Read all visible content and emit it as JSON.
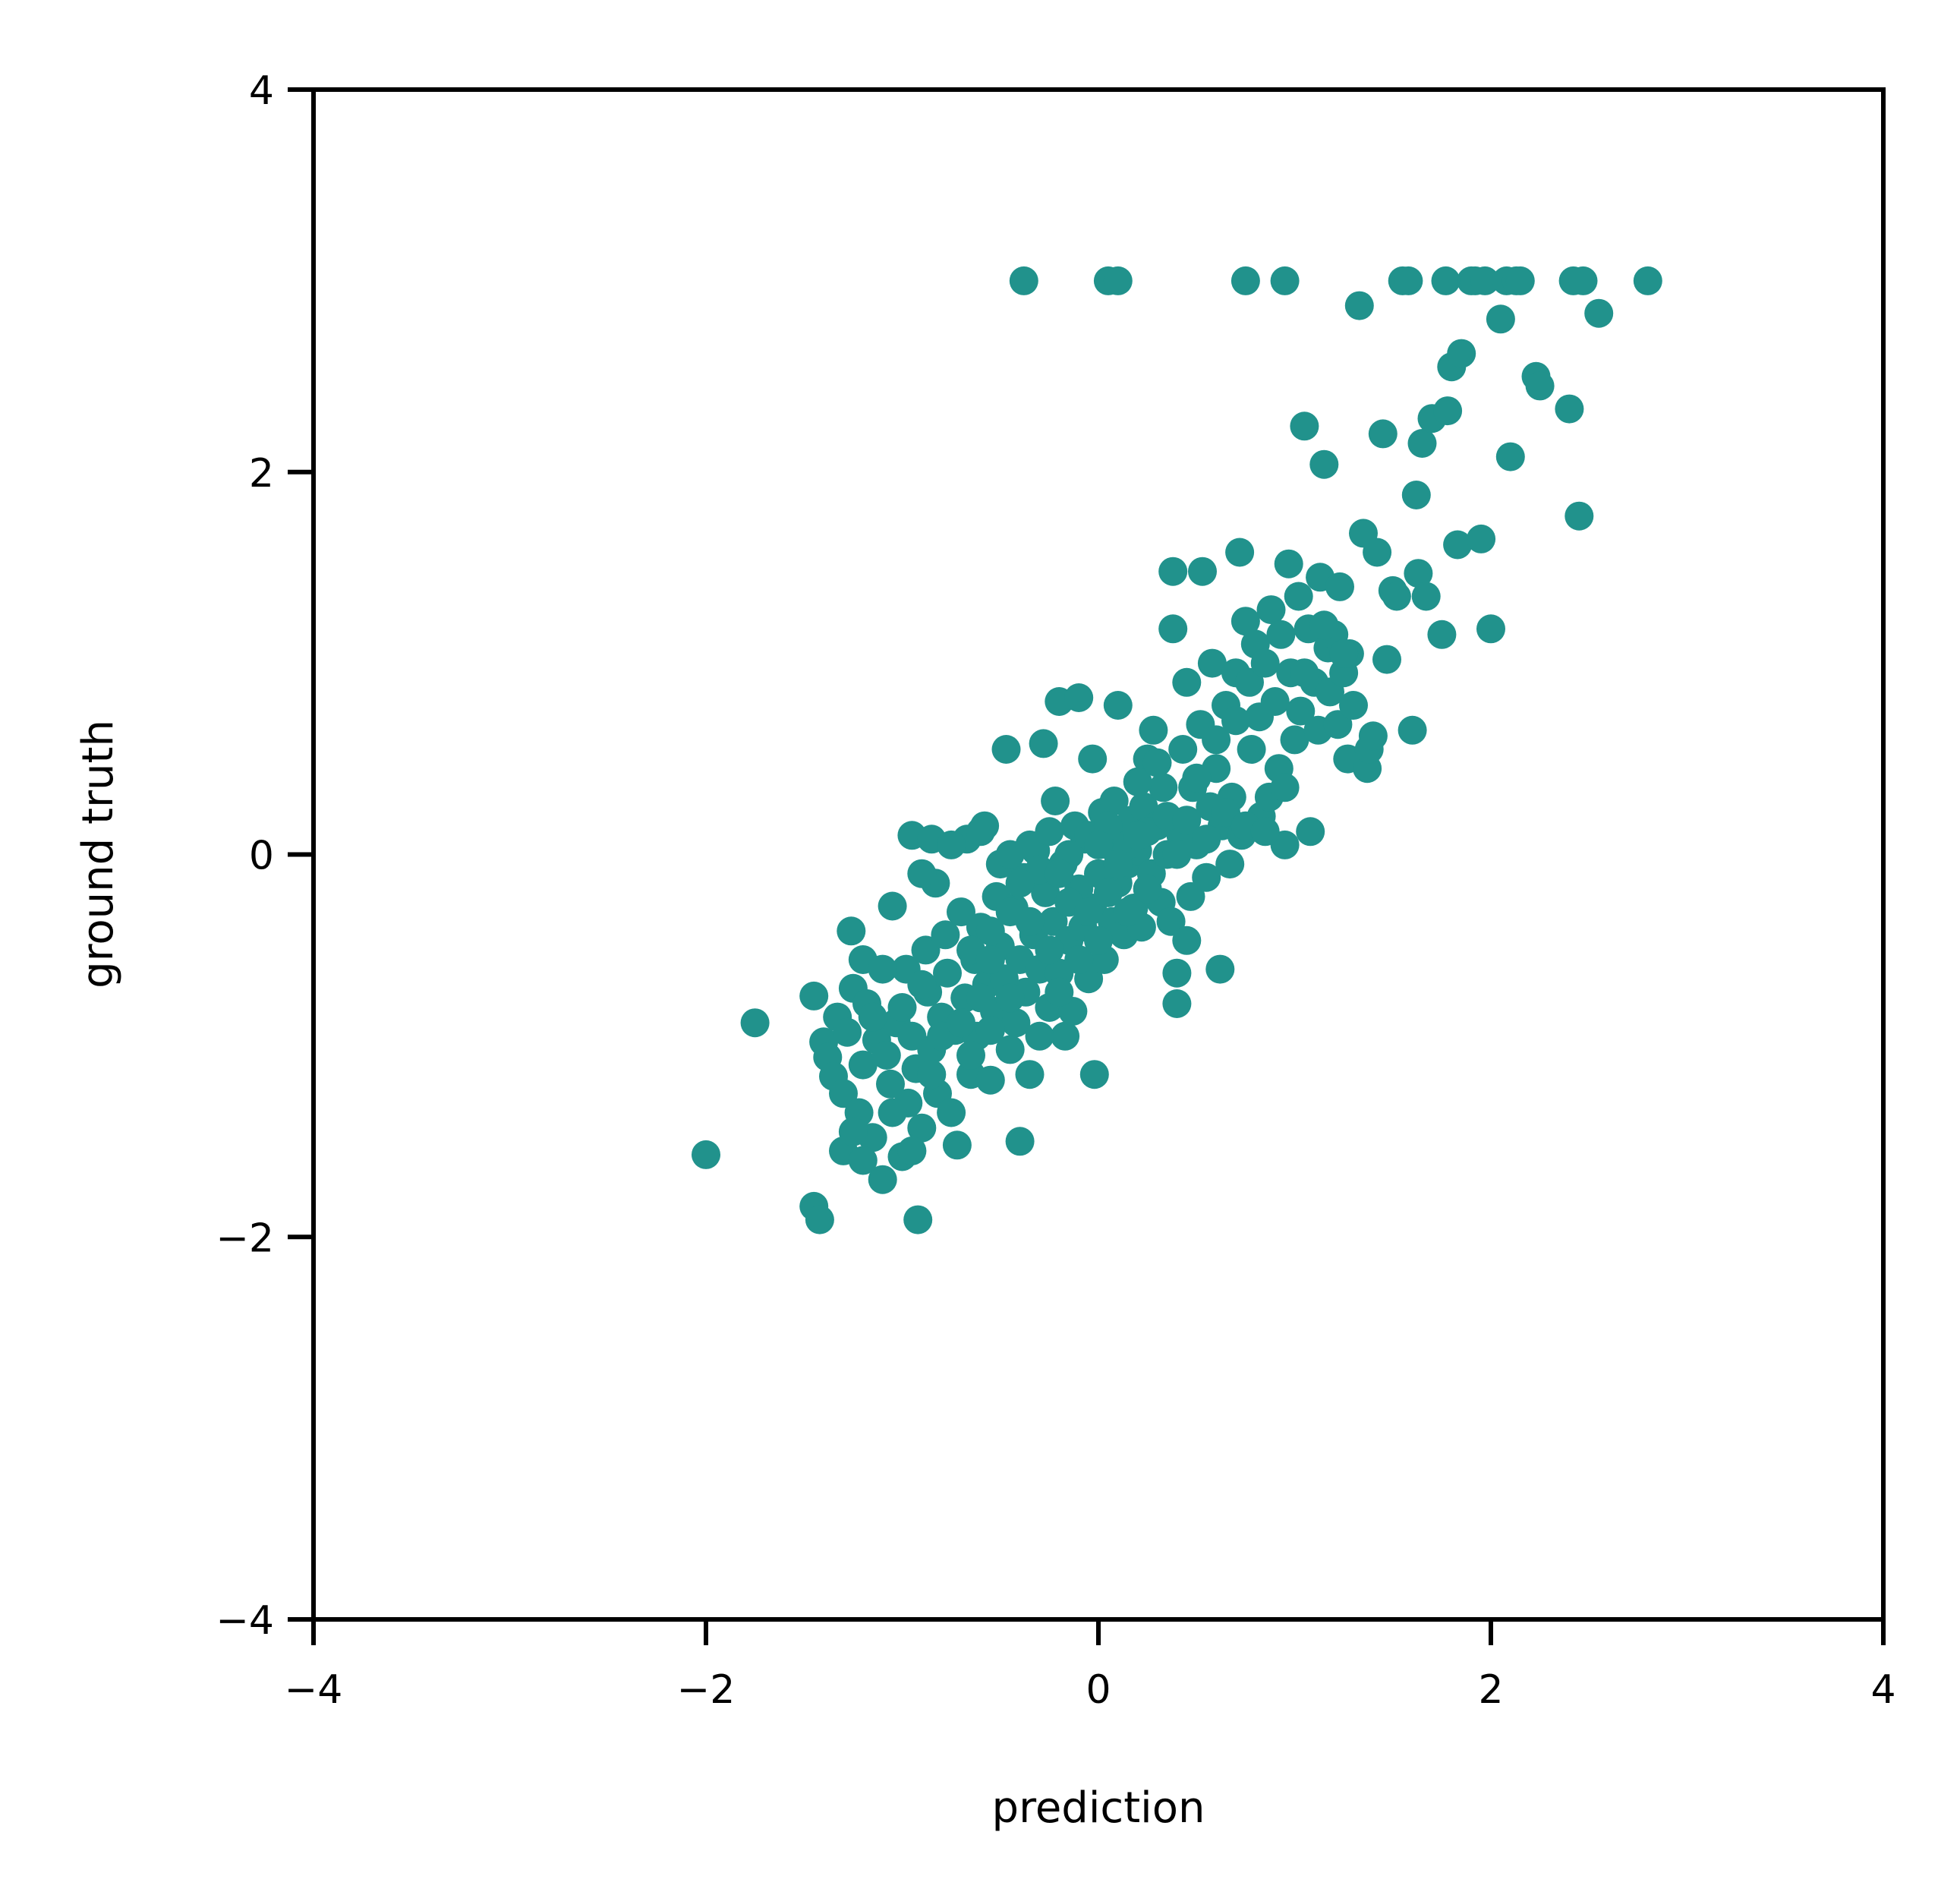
{
  "chart_data": {
    "type": "scatter",
    "title": "",
    "xlabel": "prediction",
    "ylabel": "ground truth",
    "xlim": [
      -4,
      4
    ],
    "ylim": [
      -4,
      4
    ],
    "xticks": [
      "−4",
      "−2",
      "0",
      "2",
      "4"
    ],
    "yticks": [
      "4",
      "2",
      "0",
      "−2",
      "−4"
    ],
    "xtick_values": [
      -4,
      -2,
      0,
      2,
      4
    ],
    "ytick_values": [
      4,
      2,
      0,
      -2,
      -4
    ],
    "grid": false,
    "legend": "none",
    "marker_color": "#21928c",
    "series": [
      {
        "points": [
          [
            -2.0,
            -1.57
          ],
          [
            -1.75,
            -0.88
          ],
          [
            -1.45,
            -1.84
          ],
          [
            -1.42,
            -1.91
          ],
          [
            -1.45,
            -0.74
          ],
          [
            -1.4,
            -0.98
          ],
          [
            -1.38,
            -1.06
          ],
          [
            -1.35,
            -1.16
          ],
          [
            -1.33,
            -0.85
          ],
          [
            -1.3,
            -1.25
          ],
          [
            -1.28,
            -0.93
          ],
          [
            -1.26,
            -0.4
          ],
          [
            -1.25,
            -0.7
          ],
          [
            -1.22,
            -1.35
          ],
          [
            -1.2,
            -1.1
          ],
          [
            -1.18,
            -0.78
          ],
          [
            -1.15,
            -1.48
          ],
          [
            -1.13,
            -0.97
          ],
          [
            -1.1,
            -1.7
          ],
          [
            -1.08,
            -1.05
          ],
          [
            -1.06,
            -1.2
          ],
          [
            -1.05,
            -0.27
          ],
          [
            -1.03,
            -0.88
          ],
          [
            -1.0,
            -1.58
          ],
          [
            -0.98,
            -0.6
          ],
          [
            -0.97,
            -1.3
          ],
          [
            -0.95,
            -0.95
          ],
          [
            -0.93,
            -1.12
          ],
          [
            -0.92,
            -1.91
          ],
          [
            -0.9,
            -1.43
          ],
          [
            -0.88,
            -0.5
          ],
          [
            -0.87,
            -0.72
          ],
          [
            -0.85,
            -1.02
          ],
          [
            -0.83,
            -0.15
          ],
          [
            -0.82,
            -1.25
          ],
          [
            -0.8,
            -0.85
          ],
          [
            -0.78,
            -0.42
          ],
          [
            -0.77,
            -0.62
          ],
          [
            -0.75,
            -1.35
          ],
          [
            -0.73,
            -0.92
          ],
          [
            -0.72,
            -1.52
          ],
          [
            -0.7,
            -0.3
          ],
          [
            -0.68,
            -0.75
          ],
          [
            -0.67,
            0.08
          ],
          [
            -0.65,
            -1.15
          ],
          [
            -0.63,
            -0.55
          ],
          [
            -0.62,
            -0.95
          ],
          [
            -0.6,
            -0.38
          ],
          [
            -0.58,
            0.15
          ],
          [
            -0.57,
            -0.68
          ],
          [
            -0.55,
            -1.18
          ],
          [
            -0.53,
            -0.82
          ],
          [
            -0.52,
            -0.22
          ],
          [
            -0.5,
            -0.48
          ],
          [
            -0.48,
            -0.65
          ],
          [
            -0.47,
            0.55
          ],
          [
            -0.45,
            -1.02
          ],
          [
            -0.43,
            -0.28
          ],
          [
            -0.42,
            -0.88
          ],
          [
            -0.4,
            -0.55
          ],
          [
            -0.4,
            -1.5
          ],
          [
            -0.38,
            -0.12
          ],
          [
            -0.37,
            -0.72
          ],
          [
            -0.35,
            -1.15
          ],
          [
            -0.33,
            -0.42
          ],
          [
            -0.32,
            0.02
          ],
          [
            -0.3,
            -0.6
          ],
          [
            -0.28,
            0.58
          ],
          [
            -0.27,
            -0.2
          ],
          [
            -0.25,
            -0.8
          ],
          [
            -0.23,
            -0.35
          ],
          [
            -0.22,
            0.28
          ],
          [
            -0.2,
            -0.62
          ],
          [
            -0.2,
            0.8
          ],
          [
            -0.18,
            -0.05
          ],
          [
            -0.17,
            -0.95
          ],
          [
            -0.15,
            -0.45
          ],
          [
            -0.13,
            -0.82
          ],
          [
            -0.12,
            0.15
          ],
          [
            -0.1,
            -0.18
          ],
          [
            -0.1,
            0.82
          ],
          [
            -0.08,
            -0.38
          ],
          [
            -0.07,
            0.08
          ],
          [
            -0.05,
            -0.65
          ],
          [
            -0.03,
            -0.28
          ],
          [
            -0.03,
            0.5
          ],
          [
            -0.02,
            -1.15
          ],
          [
            0.0,
            -0.1
          ],
          [
            0.02,
            0.22
          ],
          [
            0.03,
            -0.55
          ],
          [
            0.05,
            0.05
          ],
          [
            0.07,
            -0.35
          ],
          [
            0.08,
            0.28
          ],
          [
            0.1,
            -0.15
          ],
          [
            0.1,
            0.78
          ],
          [
            0.12,
            0.1
          ],
          [
            0.13,
            -0.42
          ],
          [
            0.15,
            -0.05
          ],
          [
            0.17,
            0.18
          ],
          [
            0.18,
            -0.28
          ],
          [
            0.2,
            0.02
          ],
          [
            0.22,
            -0.38
          ],
          [
            0.23,
            0.25
          ],
          [
            0.25,
            0.5
          ],
          [
            0.27,
            -0.1
          ],
          [
            0.28,
            0.65
          ],
          [
            0.3,
            0.15
          ],
          [
            0.32,
            -0.25
          ],
          [
            0.33,
            0.35
          ],
          [
            0.35,
            0.0
          ],
          [
            0.37,
            -0.35
          ],
          [
            0.38,
            1.48
          ],
          [
            0.38,
            1.18
          ],
          [
            0.4,
            -0.62
          ],
          [
            0.4,
            -0.78
          ],
          [
            0.42,
            0.1
          ],
          [
            0.43,
            0.55
          ],
          [
            0.45,
            -0.45
          ],
          [
            0.45,
            0.9
          ],
          [
            0.47,
            -0.22
          ],
          [
            0.48,
            0.35
          ],
          [
            0.5,
            0.05
          ],
          [
            0.52,
            0.68
          ],
          [
            0.53,
            1.48
          ],
          [
            0.55,
            -0.12
          ],
          [
            0.57,
            0.25
          ],
          [
            0.58,
            1.0
          ],
          [
            0.6,
            0.45
          ],
          [
            0.62,
            -0.6
          ],
          [
            0.63,
            0.15
          ],
          [
            0.65,
            0.78
          ],
          [
            0.67,
            -0.05
          ],
          [
            0.68,
            0.3
          ],
          [
            0.7,
            0.95
          ],
          [
            0.72,
            1.58
          ],
          [
            0.73,
            0.1
          ],
          [
            0.75,
            1.22
          ],
          [
            0.77,
            0.9
          ],
          [
            0.78,
            0.55
          ],
          [
            0.8,
            1.1
          ],
          [
            0.82,
            0.72
          ],
          [
            0.83,
            0.2
          ],
          [
            0.85,
            1.0
          ],
          [
            0.87,
            0.3
          ],
          [
            0.88,
            1.28
          ],
          [
            0.9,
            0.8
          ],
          [
            0.92,
            0.45
          ],
          [
            0.93,
            1.15
          ],
          [
            0.95,
            0.05
          ],
          [
            0.97,
            1.52
          ],
          [
            0.98,
            0.95
          ],
          [
            1.0,
            0.6
          ],
          [
            1.02,
            1.35
          ],
          [
            1.03,
            0.75
          ],
          [
            1.05,
            2.24
          ],
          [
            1.07,
            1.18
          ],
          [
            1.08,
            0.12
          ],
          [
            1.1,
            0.9
          ],
          [
            1.12,
            0.65
          ],
          [
            1.13,
            1.45
          ],
          [
            1.15,
            2.04
          ],
          [
            1.17,
            1.08
          ],
          [
            1.18,
            0.85
          ],
          [
            1.2,
            1.15
          ],
          [
            1.22,
            0.68
          ],
          [
            1.23,
            1.4
          ],
          [
            1.25,
            0.95
          ],
          [
            1.27,
            0.5
          ],
          [
            1.28,
            1.05
          ],
          [
            1.3,
            0.78
          ],
          [
            1.33,
            2.87
          ],
          [
            1.35,
            1.68
          ],
          [
            1.37,
            0.45
          ],
          [
            1.38,
            0.55
          ],
          [
            1.4,
            0.62
          ],
          [
            1.42,
            1.58
          ],
          [
            1.45,
            2.2
          ],
          [
            1.47,
            1.02
          ],
          [
            1.5,
            1.38
          ],
          [
            1.52,
            1.35
          ],
          [
            1.55,
            3.0
          ],
          [
            1.58,
            3.0
          ],
          [
            1.6,
            0.65
          ],
          [
            1.62,
            1.88
          ],
          [
            1.63,
            1.47
          ],
          [
            1.65,
            2.15
          ],
          [
            1.67,
            1.35
          ],
          [
            1.7,
            2.28
          ],
          [
            1.75,
            1.15
          ],
          [
            1.77,
            3.0
          ],
          [
            1.78,
            2.32
          ],
          [
            1.8,
            2.55
          ],
          [
            1.83,
            1.62
          ],
          [
            1.85,
            2.62
          ],
          [
            1.9,
            3.0
          ],
          [
            1.92,
            3.0
          ],
          [
            1.95,
            1.65
          ],
          [
            1.97,
            3.0
          ],
          [
            2.0,
            1.18
          ],
          [
            2.05,
            2.8
          ],
          [
            2.08,
            3.0
          ],
          [
            2.1,
            2.08
          ],
          [
            2.13,
            3.0
          ],
          [
            2.15,
            3.0
          ],
          [
            2.23,
            2.5
          ],
          [
            2.25,
            2.45
          ],
          [
            2.4,
            2.33
          ],
          [
            2.42,
            3.0
          ],
          [
            2.45,
            1.77
          ],
          [
            2.47,
            3.0
          ],
          [
            2.55,
            2.83
          ],
          [
            2.8,
            3.0
          ],
          [
            -0.38,
            3.0
          ],
          [
            0.05,
            3.0
          ],
          [
            0.1,
            3.0
          ],
          [
            0.75,
            3.0
          ],
          [
            0.95,
            3.0
          ],
          [
            -0.9,
            -0.1
          ],
          [
            -0.95,
            0.1
          ],
          [
            -0.85,
            0.08
          ],
          [
            -0.75,
            0.05
          ],
          [
            -0.6,
            0.12
          ],
          [
            -0.5,
            -0.05
          ],
          [
            -0.45,
            0.0
          ],
          [
            -0.35,
            0.05
          ],
          [
            -0.3,
            -0.08
          ],
          [
            -0.25,
            0.12
          ],
          [
            -0.15,
            0.0
          ],
          [
            -0.05,
            0.1
          ],
          [
            0.05,
            0.15
          ],
          [
            0.15,
            0.05
          ],
          [
            0.25,
            0.12
          ],
          [
            0.35,
            0.2
          ],
          [
            0.45,
            0.18
          ],
          [
            0.55,
            0.08
          ],
          [
            0.65,
            0.22
          ],
          [
            0.75,
            0.15
          ],
          [
            -1.2,
            -0.55
          ],
          [
            -1.15,
            -0.85
          ],
          [
            -1.1,
            -0.6
          ],
          [
            -1.0,
            -0.8
          ],
          [
            -0.9,
            -0.68
          ],
          [
            -0.8,
            -0.95
          ],
          [
            -0.7,
            -0.88
          ],
          [
            -0.6,
            -0.75
          ],
          [
            -0.55,
            -0.4
          ],
          [
            -0.45,
            -0.3
          ],
          [
            -0.35,
            -0.35
          ],
          [
            -0.25,
            -0.5
          ],
          [
            -0.15,
            -0.25
          ],
          [
            -0.05,
            -0.3
          ],
          [
            0.05,
            -0.2
          ],
          [
            0.15,
            -0.3
          ],
          [
            0.25,
            -0.18
          ],
          [
            -1.3,
            -1.55
          ],
          [
            -1.25,
            -1.45
          ],
          [
            -1.2,
            -1.6
          ],
          [
            -1.05,
            -1.35
          ],
          [
            -0.95,
            -1.55
          ],
          [
            -0.85,
            -1.15
          ],
          [
            -0.65,
            -1.05
          ],
          [
            -0.55,
            -0.92
          ],
          [
            -0.45,
            -0.75
          ],
          [
            -0.3,
            -0.95
          ],
          [
            -0.2,
            -0.72
          ],
          [
            -0.1,
            -0.55
          ],
          [
            0.0,
            -0.45
          ],
          [
            0.1,
            -0.05
          ],
          [
            0.2,
            0.38
          ],
          [
            0.3,
            0.48
          ],
          [
            0.5,
            0.4
          ],
          [
            0.6,
            0.6
          ],
          [
            0.7,
            0.7
          ],
          [
            0.85,
            0.12
          ],
          [
            0.95,
            0.35
          ],
          [
            1.05,
            0.95
          ],
          [
            1.15,
            1.2
          ],
          [
            1.25,
            1.05
          ],
          [
            -0.65,
            -0.5
          ],
          [
            -0.55,
            -0.55
          ],
          [
            -0.4,
            -0.15
          ],
          [
            -0.2,
            -0.1
          ],
          [
            0.0,
            0.05
          ],
          [
            0.2,
            0.1
          ],
          [
            0.4,
            0.0
          ]
        ]
      }
    ]
  }
}
